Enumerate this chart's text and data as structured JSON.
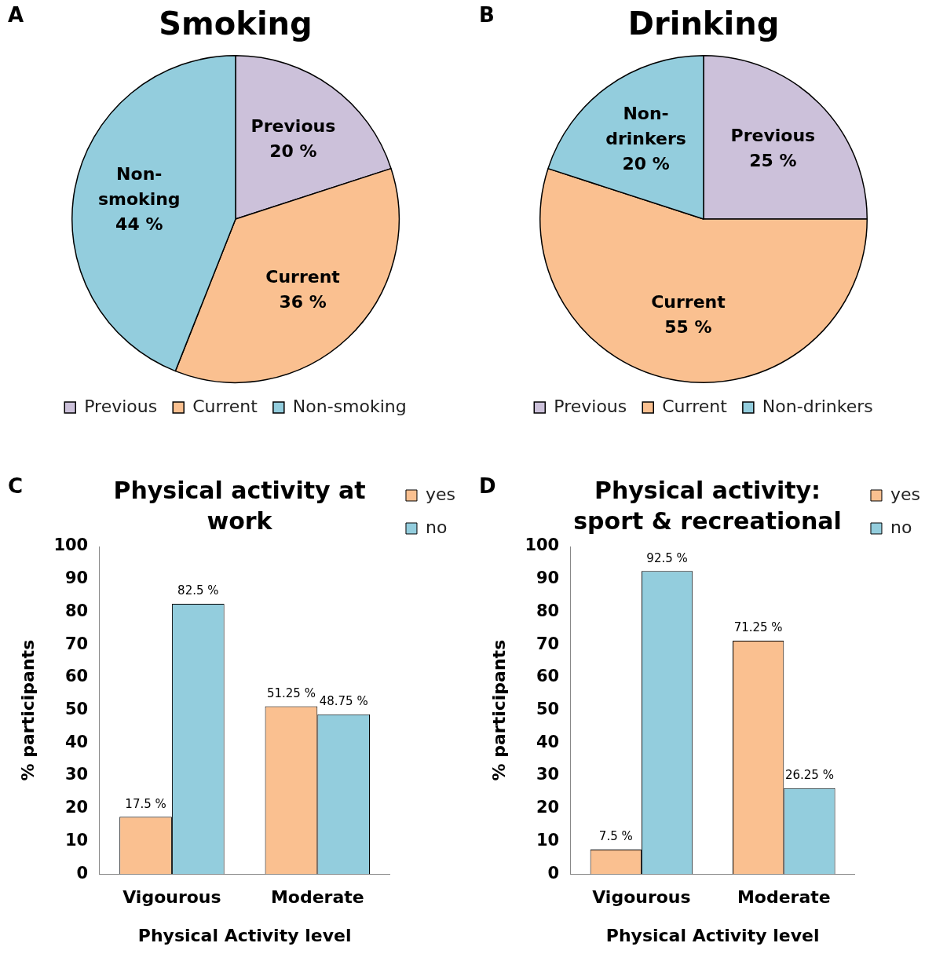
{
  "chart_data": [
    {
      "type": "pie",
      "title": "Smoking",
      "categories": [
        "Previous",
        "Current",
        "Non-smoking"
      ],
      "values": [
        20,
        36,
        44
      ],
      "colors": [
        "#ccc1da",
        "#fac090",
        "#93cddd"
      ],
      "value_labels": [
        "20 %",
        "36 %",
        "44 %"
      ],
      "legend": "bottom",
      "annotations": [
        "A"
      ]
    },
    {
      "type": "pie",
      "title": "Drinking",
      "categories": [
        "Previous",
        "Current",
        "Non-drinkers"
      ],
      "values": [
        25,
        55,
        20
      ],
      "colors": [
        "#ccc1da",
        "#fac090",
        "#93cddd"
      ],
      "value_labels": [
        "25 %",
        "55 %",
        "20 %"
      ],
      "legend": "bottom",
      "annotations": [
        "B"
      ]
    },
    {
      "type": "bar",
      "title": "Physical activity at work",
      "categories": [
        "Vigourous",
        "Moderate"
      ],
      "xlabel": "Physical Activity level",
      "ylabel": "% participants",
      "ylim": [
        0,
        100
      ],
      "yticks": [
        0,
        10,
        20,
        30,
        40,
        50,
        60,
        70,
        80,
        90,
        100
      ],
      "legend": "right",
      "annotations": [
        "C"
      ],
      "series": [
        {
          "name": "yes",
          "color": "#fac090",
          "values": [
            17.5,
            51.25
          ],
          "value_labels": [
            "17.5 %",
            "51.25 %"
          ]
        },
        {
          "name": "no",
          "color": "#93cddd",
          "values": [
            82.5,
            48.75
          ],
          "value_labels": [
            "82.5 %",
            "48.75 %"
          ]
        }
      ]
    },
    {
      "type": "bar",
      "title": "Physical activity: sport & recreational",
      "categories": [
        "Vigourous",
        "Moderate"
      ],
      "xlabel": "Physical Activity level",
      "ylabel": "% participants",
      "ylim": [
        0,
        100
      ],
      "yticks": [
        0,
        10,
        20,
        30,
        40,
        50,
        60,
        70,
        80,
        90,
        100
      ],
      "legend": "right",
      "annotations": [
        "D"
      ],
      "series": [
        {
          "name": "yes",
          "color": "#fac090",
          "values": [
            7.5,
            71.25
          ],
          "value_labels": [
            "7.5 %",
            "71.25 %"
          ]
        },
        {
          "name": "no",
          "color": "#93cddd",
          "values": [
            92.5,
            26.25
          ],
          "value_labels": [
            "92.5 %",
            "26.25 %"
          ]
        }
      ]
    }
  ]
}
